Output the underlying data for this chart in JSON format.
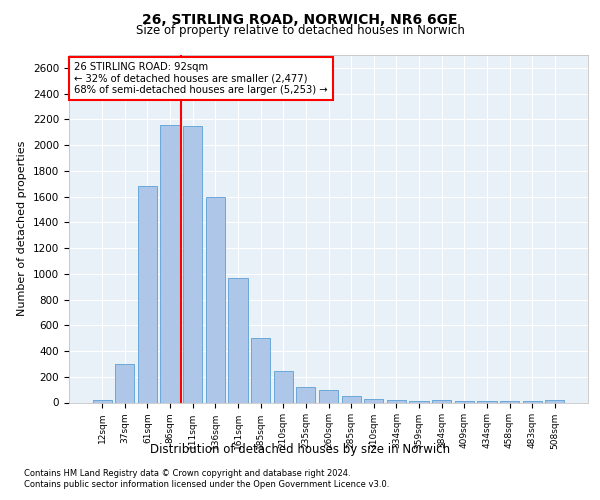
{
  "title_line1": "26, STIRLING ROAD, NORWICH, NR6 6GE",
  "title_line2": "Size of property relative to detached houses in Norwich",
  "xlabel": "Distribution of detached houses by size in Norwich",
  "ylabel": "Number of detached properties",
  "categories": [
    "12sqm",
    "37sqm",
    "61sqm",
    "86sqm",
    "111sqm",
    "136sqm",
    "161sqm",
    "185sqm",
    "210sqm",
    "235sqm",
    "260sqm",
    "285sqm",
    "310sqm",
    "334sqm",
    "359sqm",
    "384sqm",
    "409sqm",
    "434sqm",
    "458sqm",
    "483sqm",
    "508sqm"
  ],
  "values": [
    20,
    300,
    1680,
    2160,
    2150,
    1600,
    970,
    500,
    245,
    120,
    100,
    50,
    30,
    20,
    15,
    20,
    10,
    10,
    10,
    10,
    20
  ],
  "bar_color": "#aec6e8",
  "bar_edgecolor": "#5a9fd4",
  "property_line_x": 3.5,
  "annotation_text": "26 STIRLING ROAD: 92sqm\n← 32% of detached houses are smaller (2,477)\n68% of semi-detached houses are larger (5,253) →",
  "annotation_box_color": "white",
  "annotation_box_edgecolor": "red",
  "vline_color": "red",
  "ylim": [
    0,
    2700
  ],
  "yticks": [
    0,
    200,
    400,
    600,
    800,
    1000,
    1200,
    1400,
    1600,
    1800,
    2000,
    2200,
    2400,
    2600
  ],
  "footer_line1": "Contains HM Land Registry data © Crown copyright and database right 2024.",
  "footer_line2": "Contains public sector information licensed under the Open Government Licence v3.0.",
  "plot_bg_color": "#e8f0f8"
}
